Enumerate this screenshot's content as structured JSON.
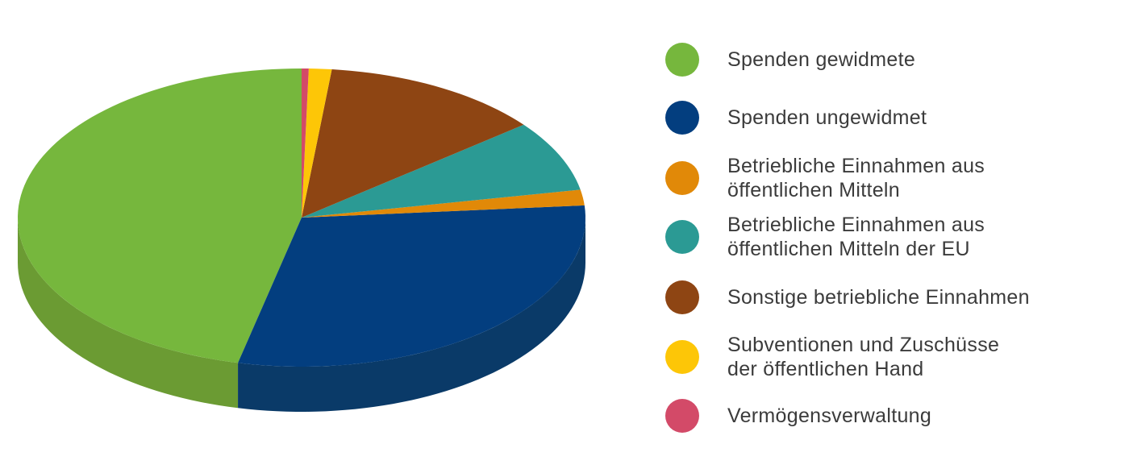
{
  "page": {
    "background_color": "#FFFFFF"
  },
  "legend": {
    "text_color": "#3B3B3B",
    "position": "right"
  },
  "chart_data": {
    "type": "pie",
    "style": "3d",
    "title": "",
    "unit": "percent_estimated",
    "start_angle_deg": 0,
    "direction": "counterclockwise",
    "legend_position": "right",
    "series": [
      {
        "key": "spenden-gewidmete",
        "label": "Spenden gewidmete",
        "label_lines": [
          "Spenden gewidmete"
        ],
        "value": 46.4,
        "color": "#76B73D",
        "side_color": "#6B9B33"
      },
      {
        "key": "spenden-ungewidmet",
        "label": "Spenden ungewidmet",
        "label_lines": [
          "Spenden ungewidmet"
        ],
        "value": 29.9,
        "color": "#033E7F",
        "side_color": "#0A3A68"
      },
      {
        "key": "betriebliche-einnahmen-oeffentliche-mittel",
        "label": "Betriebliche Einnahmen aus öffentlichen Mitteln",
        "label_lines": [
          "Betriebliche Einnahmen aus",
          "öffentlichen Mitteln"
        ],
        "value": 1.7,
        "color": "#E18908",
        "side_color": "#B86F06"
      },
      {
        "key": "betriebliche-einnahmen-oeffentliche-mittel-eu",
        "label": "Betriebliche Einnahmen aus öffentlichen Mitteln der EU",
        "label_lines": [
          "Betriebliche Einnahmen aus",
          "öffentlichen Mitteln der EU"
        ],
        "value": 7.7,
        "color": "#2B9A94",
        "side_color": "#227D78"
      },
      {
        "key": "sonstige-betriebliche-einnahmen",
        "label": "Sonstige betriebliche Einnahmen",
        "label_lines": [
          "Sonstige betriebliche Einnahmen"
        ],
        "value": 12.6,
        "color": "#8E4513",
        "side_color": "#73380F"
      },
      {
        "key": "subventionen-zuschuesse",
        "label": "Subventionen und Zuschüsse der öffentlichen Hand",
        "label_lines": [
          "Subventionen und Zuschüsse",
          "der öffentlichen Hand"
        ],
        "value": 1.3,
        "color": "#FDC607",
        "side_color": "#D3A405"
      },
      {
        "key": "vermoegensverwaltung",
        "label": "Vermögensverwaltung",
        "label_lines": [
          "Vermögensverwaltung"
        ],
        "value": 0.4,
        "color": "#D34A68",
        "side_color": "#AF3B55"
      }
    ]
  }
}
